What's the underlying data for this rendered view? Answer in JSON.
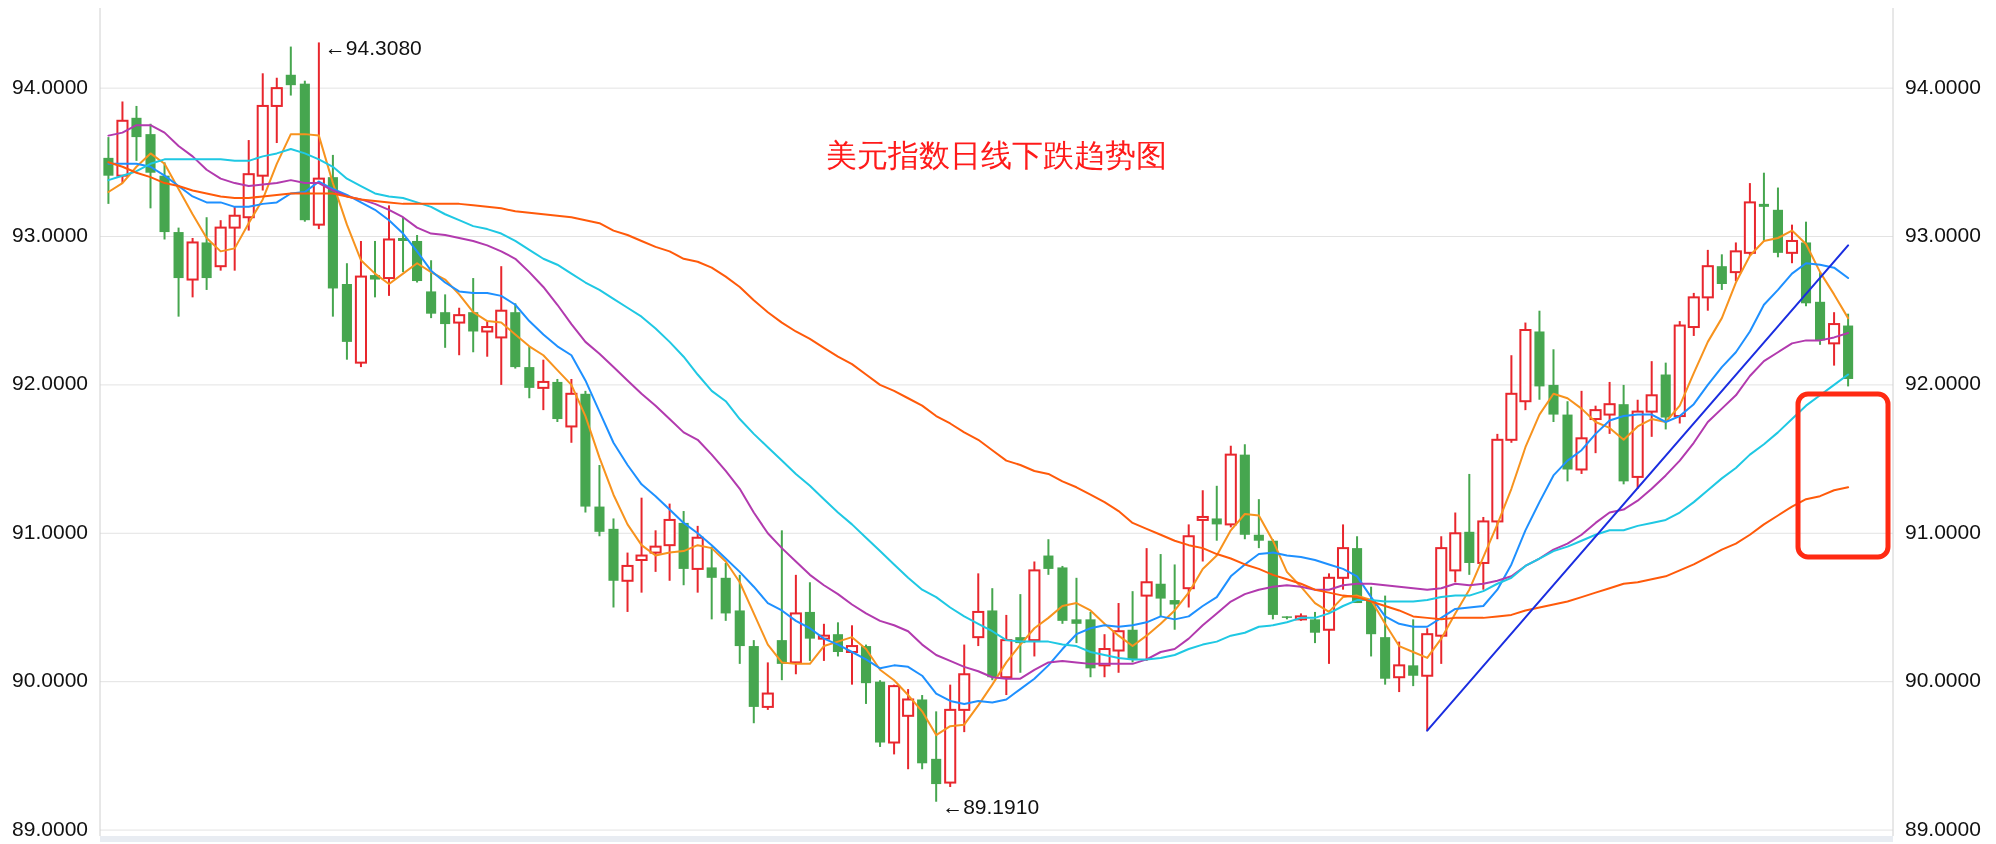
{
  "chart_data": {
    "type": "candlestick",
    "title": "美元指数日线下跌趋势图",
    "categories": [
      null,
      null,
      null,
      null,
      null,
      null,
      null,
      null,
      null,
      null,
      null,
      null,
      null,
      null,
      null,
      null,
      null,
      null,
      null,
      null,
      null,
      null,
      null,
      null,
      null,
      null,
      null,
      null,
      null,
      null,
      null,
      null,
      null,
      null,
      null,
      null,
      null,
      null,
      null,
      null,
      null,
      null,
      null,
      null,
      null,
      null,
      null,
      null,
      null,
      null,
      null,
      null,
      null,
      null,
      null,
      null,
      null,
      null,
      null,
      null,
      null,
      null,
      null,
      null,
      null,
      null,
      null,
      null,
      null,
      null,
      null,
      null,
      null,
      null,
      null,
      null,
      null,
      null,
      null,
      null,
      null,
      null,
      null,
      null,
      null,
      null,
      null,
      null,
      null,
      null,
      null,
      null,
      null,
      null,
      null,
      null,
      null,
      null,
      null,
      null,
      null,
      null,
      null,
      null,
      null,
      null,
      null,
      null,
      null,
      null,
      null,
      null,
      null,
      null,
      null,
      null,
      null,
      null,
      null,
      null,
      null,
      null,
      null,
      null,
      null
    ],
    "ohlc": [
      [
        93.53,
        93.67,
        93.22,
        93.41
      ],
      [
        93.41,
        93.91,
        93.36,
        93.78
      ],
      [
        93.8,
        93.88,
        93.51,
        93.67
      ],
      [
        93.69,
        93.76,
        93.19,
        93.43
      ],
      [
        93.41,
        93.5,
        92.98,
        93.03
      ],
      [
        93.03,
        93.06,
        92.46,
        92.72
      ],
      [
        92.71,
        92.99,
        92.59,
        92.96
      ],
      [
        92.96,
        93.13,
        92.64,
        92.72
      ],
      [
        92.8,
        93.11,
        92.77,
        93.06
      ],
      [
        93.06,
        93.2,
        92.77,
        93.14
      ],
      [
        93.13,
        93.65,
        93.04,
        93.42
      ],
      [
        93.41,
        94.1,
        93.31,
        93.88
      ],
      [
        93.88,
        94.07,
        93.63,
        94.0
      ],
      [
        94.09,
        94.28,
        93.95,
        94.02
      ],
      [
        94.03,
        94.05,
        93.1,
        93.11
      ],
      [
        93.08,
        94.308,
        93.05,
        93.39
      ],
      [
        93.4,
        93.55,
        92.46,
        92.65
      ],
      [
        92.68,
        92.82,
        92.17,
        92.29
      ],
      [
        92.15,
        92.97,
        92.12,
        92.73
      ],
      [
        92.74,
        92.97,
        92.59,
        92.71
      ],
      [
        92.72,
        93.21,
        92.6,
        92.98
      ],
      [
        92.99,
        93.13,
        92.76,
        92.97
      ],
      [
        92.97,
        93.01,
        92.69,
        92.7
      ],
      [
        92.63,
        92.84,
        92.45,
        92.48
      ],
      [
        92.49,
        92.61,
        92.25,
        92.41
      ],
      [
        92.42,
        92.52,
        92.2,
        92.47
      ],
      [
        92.49,
        92.72,
        92.22,
        92.36
      ],
      [
        92.36,
        92.43,
        92.19,
        92.39
      ],
      [
        92.32,
        92.8,
        92.0,
        92.5
      ],
      [
        92.49,
        92.55,
        92.11,
        92.12
      ],
      [
        92.12,
        92.26,
        91.91,
        91.98
      ],
      [
        91.98,
        92.17,
        91.83,
        92.02
      ],
      [
        92.02,
        92.04,
        91.75,
        91.77
      ],
      [
        91.72,
        92.04,
        91.61,
        91.94
      ],
      [
        91.94,
        91.96,
        91.14,
        91.18
      ],
      [
        91.18,
        91.46,
        90.98,
        91.01
      ],
      [
        91.03,
        91.1,
        90.5,
        90.68
      ],
      [
        90.68,
        90.87,
        90.47,
        90.78
      ],
      [
        90.82,
        91.24,
        90.6,
        90.85
      ],
      [
        90.87,
        91.02,
        90.74,
        90.91
      ],
      [
        90.92,
        91.2,
        90.68,
        91.09
      ],
      [
        91.07,
        91.15,
        90.65,
        90.76
      ],
      [
        90.76,
        91.05,
        90.6,
        90.97
      ],
      [
        90.77,
        90.91,
        90.42,
        90.7
      ],
      [
        90.7,
        90.8,
        90.41,
        90.46
      ],
      [
        90.48,
        90.72,
        90.12,
        90.24
      ],
      [
        90.24,
        90.28,
        89.72,
        89.83
      ],
      [
        89.83,
        90.13,
        89.81,
        89.92
      ],
      [
        90.28,
        91.02,
        90.01,
        90.12
      ],
      [
        90.13,
        90.72,
        90.05,
        90.46
      ],
      [
        90.47,
        90.67,
        90.14,
        90.29
      ],
      [
        90.29,
        90.39,
        90.14,
        90.31
      ],
      [
        90.32,
        90.4,
        90.17,
        90.2
      ],
      [
        90.2,
        90.38,
        89.98,
        90.24
      ],
      [
        90.24,
        90.25,
        89.85,
        89.99
      ],
      [
        90.0,
        90.01,
        89.56,
        89.59
      ],
      [
        89.59,
        89.98,
        89.51,
        89.97
      ],
      [
        89.77,
        89.95,
        89.41,
        89.88
      ],
      [
        89.88,
        89.91,
        89.41,
        89.45
      ],
      [
        89.48,
        89.8,
        89.191,
        89.31
      ],
      [
        89.32,
        89.98,
        89.29,
        89.81
      ],
      [
        89.81,
        90.25,
        89.66,
        90.05
      ],
      [
        90.3,
        90.73,
        90.24,
        90.47
      ],
      [
        90.48,
        90.63,
        90.01,
        90.03
      ],
      [
        90.03,
        90.45,
        89.91,
        90.28
      ],
      [
        90.3,
        90.59,
        90.06,
        90.26
      ],
      [
        90.28,
        90.81,
        90.17,
        90.75
      ],
      [
        90.85,
        90.96,
        90.72,
        90.76
      ],
      [
        90.77,
        90.78,
        90.39,
        90.41
      ],
      [
        90.42,
        90.7,
        90.26,
        90.39
      ],
      [
        90.42,
        90.47,
        90.03,
        90.09
      ],
      [
        90.11,
        90.32,
        90.03,
        90.22
      ],
      [
        90.21,
        90.53,
        90.06,
        90.34
      ],
      [
        90.35,
        90.61,
        90.13,
        90.15
      ],
      [
        90.58,
        90.9,
        90.14,
        90.67
      ],
      [
        90.66,
        90.86,
        90.44,
        90.56
      ],
      [
        90.55,
        90.79,
        90.35,
        90.52
      ],
      [
        90.63,
        91.06,
        90.5,
        90.98
      ],
      [
        91.09,
        91.29,
        90.81,
        91.11
      ],
      [
        91.1,
        91.32,
        90.95,
        91.06
      ],
      [
        91.06,
        91.59,
        91.04,
        91.53
      ],
      [
        91.53,
        91.6,
        90.96,
        90.99
      ],
      [
        90.99,
        91.23,
        90.9,
        90.95
      ],
      [
        90.95,
        90.96,
        90.42,
        90.45
      ],
      [
        90.44,
        90.44,
        90.42,
        90.43
      ],
      [
        90.42,
        90.46,
        90.41,
        90.44
      ],
      [
        90.42,
        90.47,
        90.26,
        90.33
      ],
      [
        90.35,
        90.73,
        90.12,
        90.7
      ],
      [
        90.7,
        91.06,
        90.62,
        90.9
      ],
      [
        90.9,
        90.98,
        90.53,
        90.53
      ],
      [
        90.55,
        90.64,
        90.17,
        90.32
      ],
      [
        90.3,
        90.58,
        89.98,
        90.02
      ],
      [
        90.03,
        90.27,
        89.93,
        90.11
      ],
      [
        90.11,
        90.42,
        89.97,
        90.04
      ],
      [
        90.04,
        90.36,
        89.67,
        90.32
      ],
      [
        90.31,
        90.98,
        90.12,
        90.9
      ],
      [
        90.75,
        91.14,
        90.67,
        91.0
      ],
      [
        91.01,
        91.4,
        90.72,
        90.8
      ],
      [
        90.8,
        91.11,
        90.62,
        91.08
      ],
      [
        91.08,
        91.67,
        90.96,
        91.63
      ],
      [
        91.63,
        92.2,
        91.61,
        91.94
      ],
      [
        91.89,
        92.42,
        91.83,
        92.37
      ],
      [
        92.36,
        92.5,
        91.9,
        91.99
      ],
      [
        92.0,
        92.24,
        91.75,
        91.8
      ],
      [
        91.8,
        91.89,
        91.35,
        91.43
      ],
      [
        91.43,
        91.96,
        91.4,
        91.64
      ],
      [
        91.77,
        91.86,
        91.54,
        91.83
      ],
      [
        91.8,
        92.02,
        91.67,
        91.87
      ],
      [
        91.87,
        92.0,
        91.33,
        91.35
      ],
      [
        91.38,
        91.9,
        91.3,
        91.82
      ],
      [
        91.82,
        92.16,
        91.65,
        91.93
      ],
      [
        92.07,
        92.15,
        91.7,
        91.78
      ],
      [
        91.79,
        92.43,
        91.74,
        92.4
      ],
      [
        92.39,
        92.62,
        92.33,
        92.59
      ],
      [
        92.59,
        92.91,
        92.5,
        92.8
      ],
      [
        92.8,
        92.88,
        92.64,
        92.68
      ],
      [
        92.76,
        92.96,
        92.7,
        92.9
      ],
      [
        92.89,
        93.36,
        92.87,
        93.23
      ],
      [
        93.22,
        93.43,
        92.97,
        93.2
      ],
      [
        93.18,
        93.33,
        92.86,
        92.89
      ],
      [
        92.89,
        93.08,
        92.82,
        92.97
      ],
      [
        92.96,
        93.1,
        92.53,
        92.55
      ],
      [
        92.56,
        92.76,
        92.27,
        92.3
      ],
      [
        92.28,
        92.49,
        92.13,
        92.41
      ],
      [
        92.4,
        92.48,
        91.99,
        92.04
      ]
    ],
    "series": [
      {
        "type": "line",
        "color": "#f7931e",
        "values": [
          93.3,
          93.36,
          93.47,
          93.56,
          93.49,
          93.32,
          93.15,
          92.99,
          92.9,
          92.92,
          93.09,
          93.25,
          93.49,
          93.69,
          93.69,
          93.68,
          93.36,
          93.08,
          92.84,
          92.75,
          92.68,
          92.75,
          92.82,
          92.76,
          92.71,
          92.61,
          92.49,
          92.43,
          92.42,
          92.34,
          92.26,
          92.2,
          92.1,
          92.0,
          91.79,
          91.51,
          91.26,
          91.06,
          90.92,
          90.85,
          90.87,
          90.88,
          90.92,
          90.9,
          90.81,
          90.67,
          90.46,
          90.25,
          90.13,
          90.12,
          90.12,
          90.24,
          90.27,
          90.3,
          90.22,
          90.08,
          90.01,
          89.91,
          89.8,
          89.64,
          89.7,
          89.71,
          89.84,
          89.98,
          90.13,
          90.25,
          90.36,
          90.43,
          90.51,
          90.53,
          90.48,
          90.39,
          90.31,
          90.24,
          90.31,
          90.39,
          90.48,
          90.6,
          90.76,
          90.85,
          91.02,
          91.13,
          91.12,
          90.95,
          90.74,
          90.64,
          90.53,
          90.47,
          90.57,
          90.58,
          90.55,
          90.39,
          90.24,
          90.2,
          90.16,
          90.29,
          90.46,
          90.62,
          90.84,
          91.06,
          91.3,
          91.58,
          91.8,
          91.94,
          91.91,
          91.84,
          91.75,
          91.71,
          91.63,
          91.72,
          91.77,
          91.75,
          91.86,
          92.08,
          92.29,
          92.45,
          92.69,
          92.87,
          92.97,
          92.99,
          93.04,
          92.95,
          92.76,
          92.61,
          92.45
        ]
      },
      {
        "type": "line",
        "color": "#1e90ff",
        "values": [
          93.49,
          93.49,
          93.49,
          93.47,
          93.41,
          93.34,
          93.27,
          93.23,
          93.23,
          93.2,
          93.2,
          93.22,
          93.23,
          93.29,
          93.3,
          93.37,
          93.32,
          93.28,
          93.23,
          93.18,
          93.11,
          93.02,
          92.9,
          92.77,
          92.69,
          92.63,
          92.62,
          92.62,
          92.6,
          92.54,
          92.43,
          92.34,
          92.26,
          92.2,
          92.03,
          91.82,
          91.61,
          91.46,
          91.33,
          91.25,
          91.16,
          91.07,
          91.0,
          90.92,
          90.83,
          90.74,
          90.64,
          90.53,
          90.48,
          90.41,
          90.36,
          90.29,
          90.25,
          90.2,
          90.15,
          90.09,
          90.11,
          90.1,
          90.04,
          89.92,
          89.87,
          89.85,
          89.87,
          89.86,
          89.88,
          89.95,
          90.02,
          90.11,
          90.22,
          90.32,
          90.36,
          90.38,
          90.37,
          90.38,
          90.4,
          90.44,
          90.42,
          90.44,
          90.51,
          90.57,
          90.71,
          90.79,
          90.86,
          90.87,
          90.85,
          90.84,
          90.82,
          90.79,
          90.76,
          90.71,
          90.57,
          90.44,
          90.39,
          90.37,
          90.37,
          90.43,
          90.49,
          90.5,
          90.51,
          90.62,
          90.79,
          91.02,
          91.21,
          91.39,
          91.49,
          91.56,
          91.67,
          91.76,
          91.79,
          91.8,
          91.8,
          91.75,
          91.79,
          91.87,
          92.0,
          92.12,
          92.22,
          92.36,
          92.54,
          92.64,
          92.75,
          92.82,
          92.81,
          92.79,
          92.72
        ]
      },
      {
        "type": "line",
        "color": "#b23aae",
        "values": [
          93.68,
          93.7,
          93.75,
          93.75,
          93.7,
          93.61,
          93.54,
          93.45,
          93.39,
          93.36,
          93.34,
          93.35,
          93.36,
          93.38,
          93.36,
          93.36,
          93.31,
          93.27,
          93.25,
          93.22,
          93.18,
          93.13,
          93.06,
          93.02,
          93.01,
          92.99,
          92.97,
          92.94,
          92.9,
          92.85,
          92.76,
          92.66,
          92.54,
          92.41,
          92.29,
          92.21,
          92.12,
          92.03,
          91.94,
          91.86,
          91.77,
          91.68,
          91.63,
          91.53,
          91.42,
          91.3,
          91.14,
          91.0,
          90.9,
          90.81,
          90.72,
          90.65,
          90.59,
          90.52,
          90.46,
          90.41,
          90.38,
          90.34,
          90.25,
          90.18,
          90.14,
          90.1,
          90.07,
          90.03,
          90.02,
          90.02,
          90.08,
          90.13,
          90.14,
          90.13,
          90.12,
          90.12,
          90.12,
          90.12,
          90.15,
          90.2,
          90.22,
          90.29,
          90.38,
          90.46,
          90.54,
          90.59,
          90.62,
          90.64,
          90.65,
          90.64,
          90.62,
          90.62,
          90.65,
          90.66,
          90.66,
          90.65,
          90.64,
          90.63,
          90.62,
          90.63,
          90.66,
          90.65,
          90.66,
          90.68,
          90.71,
          90.78,
          90.83,
          90.89,
          90.93,
          90.99,
          91.07,
          91.14,
          91.16,
          91.22,
          91.3,
          91.39,
          91.49,
          91.61,
          91.75,
          91.84,
          91.93,
          92.06,
          92.16,
          92.22,
          92.28,
          92.3,
          92.3,
          92.32,
          92.35
        ]
      },
      {
        "type": "line",
        "color": "#1fc8e3",
        "values": [
          93.38,
          93.41,
          93.44,
          93.49,
          93.52,
          93.52,
          93.52,
          93.52,
          93.52,
          93.51,
          93.51,
          93.54,
          93.56,
          93.59,
          93.56,
          93.52,
          93.47,
          93.39,
          93.34,
          93.29,
          93.27,
          93.26,
          93.23,
          93.2,
          93.15,
          93.11,
          93.07,
          93.05,
          93.02,
          92.97,
          92.91,
          92.85,
          92.81,
          92.75,
          92.69,
          92.64,
          92.58,
          92.52,
          92.46,
          92.38,
          92.29,
          92.19,
          92.07,
          91.96,
          91.89,
          91.77,
          91.67,
          91.58,
          91.49,
          91.4,
          91.32,
          91.23,
          91.14,
          91.06,
          90.97,
          90.88,
          90.79,
          90.7,
          90.62,
          90.57,
          90.5,
          90.44,
          90.39,
          90.34,
          90.28,
          90.27,
          90.27,
          90.27,
          90.25,
          90.24,
          90.2,
          90.18,
          90.16,
          90.15,
          90.15,
          90.16,
          90.18,
          90.22,
          90.25,
          90.27,
          90.31,
          90.33,
          90.37,
          90.38,
          90.4,
          90.43,
          90.43,
          90.46,
          90.51,
          90.55,
          90.55,
          90.54,
          90.54,
          90.54,
          90.55,
          90.57,
          90.58,
          90.58,
          90.61,
          90.66,
          90.7,
          90.78,
          90.83,
          90.88,
          90.91,
          90.95,
          90.99,
          91.02,
          91.02,
          91.05,
          91.07,
          91.09,
          91.14,
          91.21,
          91.29,
          91.37,
          91.44,
          91.53,
          91.6,
          91.68,
          91.77,
          91.86,
          91.93,
          92.0,
          92.07
        ]
      },
      {
        "type": "line",
        "color": "#ff5a0a",
        "values": [
          93.5,
          93.47,
          93.43,
          93.4,
          93.36,
          93.34,
          93.31,
          93.29,
          93.27,
          93.26,
          93.26,
          93.27,
          93.28,
          93.29,
          93.29,
          93.29,
          93.29,
          93.27,
          93.25,
          93.24,
          93.23,
          93.22,
          93.22,
          93.22,
          93.22,
          93.22,
          93.21,
          93.2,
          93.19,
          93.17,
          93.16,
          93.15,
          93.14,
          93.13,
          93.11,
          93.09,
          93.04,
          93.01,
          92.97,
          92.93,
          92.9,
          92.85,
          92.83,
          92.79,
          92.73,
          92.66,
          92.57,
          92.49,
          92.42,
          92.36,
          92.31,
          92.25,
          92.19,
          92.14,
          92.07,
          92.0,
          91.96,
          91.91,
          91.86,
          91.79,
          91.74,
          91.68,
          91.63,
          91.56,
          91.49,
          91.46,
          91.42,
          91.4,
          91.35,
          91.31,
          91.26,
          91.21,
          91.15,
          91.07,
          91.03,
          90.99,
          90.95,
          90.92,
          90.9,
          90.86,
          90.83,
          90.79,
          90.76,
          90.72,
          90.69,
          90.66,
          90.62,
          90.6,
          90.58,
          90.57,
          90.54,
          90.51,
          90.48,
          90.44,
          90.43,
          90.42,
          90.43,
          90.43,
          90.43,
          90.44,
          90.45,
          90.48,
          90.5,
          90.52,
          90.54,
          90.57,
          90.6,
          90.63,
          90.66,
          90.67,
          90.69,
          90.71,
          90.75,
          90.79,
          90.84,
          90.89,
          90.93,
          90.99,
          91.06,
          91.12,
          91.18,
          91.23,
          91.25,
          91.29,
          91.31
        ]
      },
      {
        "type": "line",
        "color": "#1a2de0",
        "values": [
          null,
          null,
          null,
          null,
          null,
          null,
          null,
          null,
          null,
          null,
          null,
          null,
          null,
          null,
          null,
          null,
          null,
          null,
          null,
          null,
          null,
          null,
          null,
          null,
          null,
          null,
          null,
          null,
          null,
          null,
          null,
          null,
          null,
          null,
          null,
          null,
          null,
          null,
          null,
          null,
          null,
          null,
          null,
          null,
          null,
          null,
          null,
          null,
          null,
          null,
          null,
          null,
          null,
          null,
          null,
          null,
          null,
          null,
          null,
          null,
          null,
          null,
          null,
          null,
          null,
          null,
          null,
          null,
          null,
          null,
          null,
          null,
          null,
          null,
          null,
          null,
          null,
          null,
          null,
          null,
          null,
          null,
          null,
          null,
          null,
          null,
          null,
          null,
          null,
          null,
          null,
          null,
          null,
          null,
          89.67,
          null,
          null,
          null,
          null,
          null,
          null,
          null,
          null,
          null,
          null,
          null,
          null,
          null,
          null,
          null,
          null,
          null,
          null,
          null,
          null,
          null,
          null,
          null,
          null,
          null,
          null,
          null,
          null,
          null,
          92.94
        ]
      }
    ],
    "annotations": [
      "←94.3080",
      "←89.1910"
    ],
    "ylim": [
      88.96,
      94.54
    ],
    "yticks": [
      {
        "value": 89,
        "label": "89.0000"
      },
      {
        "value": 90,
        "label": "90.0000"
      },
      {
        "value": 91,
        "label": "91.0000"
      },
      {
        "value": 92,
        "label": "92.0000"
      },
      {
        "value": 93,
        "label": "93.0000"
      },
      {
        "value": 94,
        "label": "94.0000"
      }
    ],
    "y2lim": [
      88.96,
      94.54
    ],
    "y2ticks": [
      {
        "value": 89,
        "label": "89.0000"
      },
      {
        "value": 90,
        "label": "90.0000"
      },
      {
        "value": 91,
        "label": "91.0000"
      },
      {
        "value": 92,
        "label": "92.0000"
      },
      {
        "value": 93,
        "label": "93.0000"
      },
      {
        "value": 94,
        "label": "94.0000"
      }
    ],
    "grid": "y",
    "tick_labels": "y"
  }
}
